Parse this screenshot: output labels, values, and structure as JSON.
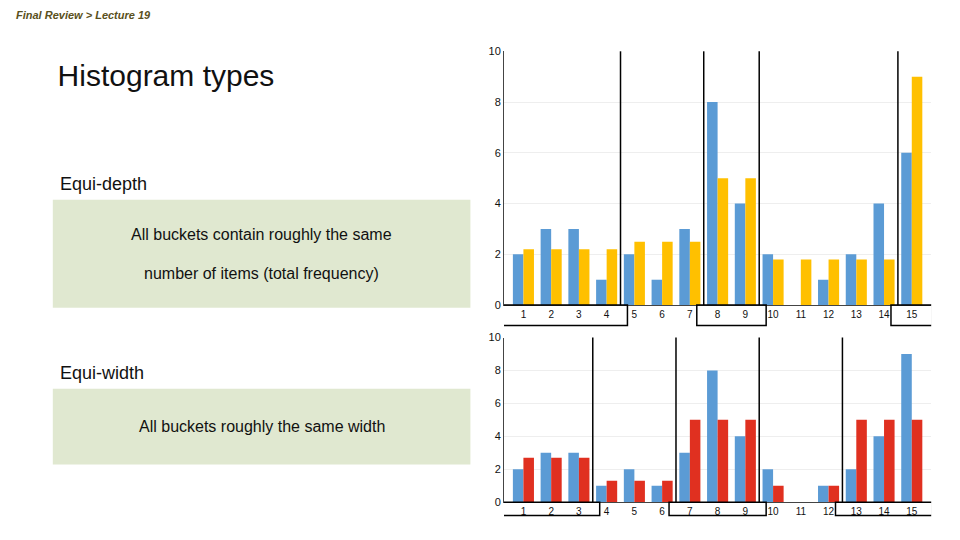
{
  "title": "Histogram types",
  "annotations": [
    "Final Review > Lecture 19"
  ],
  "chart_data": [
    {
      "type": "bar",
      "subtitle": "Equi-depth",
      "annotations": [
        "All buckets contain roughly the same",
        "number of items (total frequency)"
      ],
      "categories": [
        1,
        2,
        3,
        4,
        5,
        6,
        7,
        8,
        9,
        10,
        11,
        12,
        13,
        14,
        15
      ],
      "series": [
        {
          "color": "#5B9BD5",
          "values": [
            2,
            3,
            3,
            1,
            2,
            1,
            3,
            8,
            4,
            2,
            0,
            1,
            2,
            4,
            6
          ]
        },
        {
          "color": "#FFC000",
          "values": [
            2.2,
            2.2,
            2.2,
            2.2,
            2.5,
            2.5,
            2.5,
            5,
            5,
            1.8,
            1.8,
            1.8,
            1.8,
            1.8,
            9
          ]
        }
      ],
      "vlines": [
        4.5,
        7.5,
        9.5,
        14.5
      ],
      "buckets": [
        [
          1,
          4
        ],
        [
          8,
          9
        ],
        [
          15,
          15
        ]
      ],
      "xlim": [
        0.3,
        15.7
      ],
      "xticks": [
        1,
        2,
        3,
        4,
        5,
        6,
        7,
        8,
        9,
        10,
        11,
        12,
        13,
        14,
        15
      ],
      "ylim": [
        0,
        10
      ],
      "yticks": [
        0,
        2,
        4,
        6,
        8,
        10
      ],
      "grid": true
    },
    {
      "type": "bar",
      "subtitle": "Equi-width",
      "annotations": [
        "All buckets roughly the same width"
      ],
      "categories": [
        1,
        2,
        3,
        4,
        5,
        6,
        7,
        8,
        9,
        10,
        11,
        12,
        13,
        14,
        15
      ],
      "series": [
        {
          "color": "#5B9BD5",
          "values": [
            2,
            3,
            3,
            1,
            2,
            1,
            3,
            8,
            4,
            2,
            0,
            1,
            2,
            4,
            9
          ]
        },
        {
          "color": "#E03020",
          "values": [
            2.7,
            2.7,
            2.7,
            1.3,
            1.3,
            1.3,
            5,
            5,
            5,
            1,
            0,
            1,
            5,
            5,
            5
          ]
        }
      ],
      "vlines": [
        3.5,
        6.5,
        9.5,
        12.5
      ],
      "buckets": [
        [
          1,
          3
        ],
        [
          7,
          9
        ],
        [
          13,
          15
        ]
      ],
      "xlim": [
        0.3,
        15.7
      ],
      "xticks": [
        1,
        2,
        3,
        4,
        5,
        6,
        7,
        8,
        9,
        10,
        11,
        12,
        13,
        14,
        15
      ],
      "ylim": [
        0,
        10
      ],
      "yticks": [
        0,
        2,
        4,
        6,
        8,
        10
      ],
      "grid": true
    }
  ]
}
